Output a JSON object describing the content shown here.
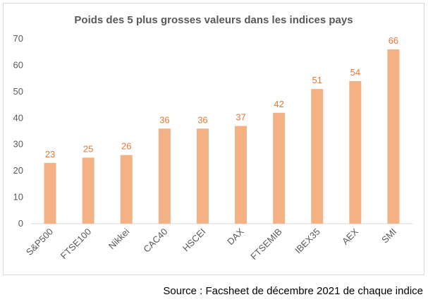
{
  "chart_data": {
    "type": "bar",
    "title": "Poids des 5 plus grosses valeurs dans les indices pays",
    "categories": [
      "S&P500",
      "FTSE100",
      "Nikkei",
      "CAC40",
      "HSCEI",
      "DAX",
      "FTSEMIB",
      "IBEX35",
      "AEX",
      "SMI"
    ],
    "values": [
      23,
      25,
      26,
      36,
      36,
      37,
      42,
      51,
      54,
      66
    ],
    "data_labels": [
      "23",
      "25",
      "26",
      "36",
      "36",
      "37",
      "42",
      "51",
      "54",
      "66"
    ],
    "ylim": [
      0,
      70
    ],
    "yticks": [
      0,
      10,
      20,
      30,
      40,
      50,
      60,
      70
    ],
    "grid": false,
    "legend": "none",
    "bar_color": "#F4B183",
    "label_color": "#E07B39"
  },
  "source": "Source : Facsheet de décembre 2021 de chaque indice"
}
